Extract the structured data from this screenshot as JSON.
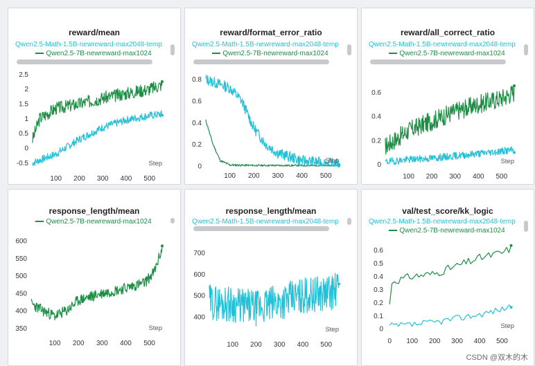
{
  "colors": {
    "green": "#1e8e45",
    "cyan": "#22c1d8",
    "axis": "#333333"
  },
  "legend": {
    "math15b": "Qwen2.5-Math-1.5B-newreward-max2048-temp",
    "qwen7b": "Qwen2.5-7B-newreward-max1024"
  },
  "step_label": "Step",
  "watermark": "CSDN @双木的木",
  "chart_data": [
    {
      "id": "reward-mean",
      "type": "line",
      "title": "reward/mean",
      "xlim": [
        0,
        560
      ],
      "ylim": [
        -0.7,
        2.6
      ],
      "xticks": [
        100,
        200,
        300,
        400,
        500
      ],
      "yticks": [
        -0.5,
        0,
        0.5,
        1,
        1.5,
        2,
        2.5
      ],
      "yticklabels": [
        "-0.5",
        "0",
        "0.5",
        "1",
        "1.5",
        "2",
        "2.5"
      ],
      "series": [
        {
          "name": "Qwen2.5-7B-newreward-max1024",
          "color": "green",
          "noise": 0.22,
          "seed": 3,
          "trend": [
            [
              0,
              0.3
            ],
            [
              30,
              1.0
            ],
            [
              100,
              1.35
            ],
            [
              200,
              1.5
            ],
            [
              300,
              1.7
            ],
            [
              400,
              1.85
            ],
            [
              500,
              2.0
            ],
            [
              555,
              2.15
            ]
          ]
        },
        {
          "name": "Qwen2.5-Math-1.5B-newreward-max2048-temp",
          "color": "cyan",
          "noise": 0.13,
          "seed": 7,
          "trend": [
            [
              0,
              -0.5
            ],
            [
              100,
              -0.2
            ],
            [
              200,
              0.3
            ],
            [
              300,
              0.7
            ],
            [
              400,
              0.95
            ],
            [
              500,
              1.1
            ],
            [
              555,
              1.15
            ]
          ]
        }
      ]
    },
    {
      "id": "format-error",
      "type": "line",
      "title": "reward/format_error_ratio",
      "xlim": [
        0,
        560
      ],
      "ylim": [
        0,
        0.88
      ],
      "xticks": [
        100,
        200,
        300,
        400,
        500
      ],
      "yticks": [
        0,
        0.2,
        0.4,
        0.6,
        0.8
      ],
      "yticklabels": [
        "0",
        "0.2",
        "0.4",
        "0.6",
        "0.8"
      ],
      "series": [
        {
          "name": "Qwen2.5-7B-newreward-max1024",
          "color": "green",
          "noise": 0.01,
          "seed": 11,
          "trend": [
            [
              0,
              0.42
            ],
            [
              30,
              0.2
            ],
            [
              60,
              0.05
            ],
            [
              100,
              0.01
            ],
            [
              200,
              0.005
            ],
            [
              555,
              0.003
            ]
          ]
        },
        {
          "name": "Qwen2.5-Math-1.5B-newreward-max2048-temp",
          "color": "cyan",
          "noise": 0.05,
          "seed": 13,
          "trend": [
            [
              0,
              0.8
            ],
            [
              100,
              0.72
            ],
            [
              150,
              0.6
            ],
            [
              200,
              0.35
            ],
            [
              250,
              0.2
            ],
            [
              300,
              0.12
            ],
            [
              400,
              0.05
            ],
            [
              500,
              0.03
            ],
            [
              555,
              0.02
            ]
          ]
        }
      ]
    },
    {
      "id": "all-correct",
      "type": "line",
      "title": "reward/all_correct_ratio",
      "xlim": [
        0,
        560
      ],
      "ylim": [
        -0.02,
        0.78
      ],
      "xticks": [
        100,
        200,
        300,
        400,
        500
      ],
      "yticks": [
        0,
        0.2,
        0.4,
        0.6
      ],
      "yticklabels": [
        "0",
        "0.2",
        "0.4",
        "0.6"
      ],
      "series": [
        {
          "name": "Qwen2.5-7B-newreward-max1024",
          "color": "green",
          "noise": 0.08,
          "seed": 17,
          "trend": [
            [
              0,
              0.15
            ],
            [
              100,
              0.28
            ],
            [
              200,
              0.36
            ],
            [
              300,
              0.44
            ],
            [
              400,
              0.5
            ],
            [
              500,
              0.55
            ],
            [
              555,
              0.6
            ]
          ]
        },
        {
          "name": "Qwen2.5-Math-1.5B-newreward-max2048-temp",
          "color": "cyan",
          "noise": 0.03,
          "seed": 19,
          "trend": [
            [
              0,
              0.02
            ],
            [
              100,
              0.04
            ],
            [
              200,
              0.05
            ],
            [
              300,
              0.07
            ],
            [
              400,
              0.09
            ],
            [
              500,
              0.11
            ],
            [
              555,
              0.12
            ]
          ]
        }
      ]
    },
    {
      "id": "resp-len-7b",
      "type": "line",
      "title": "response_length/mean",
      "xlim": [
        0,
        560
      ],
      "ylim": [
        335,
        632
      ],
      "xticks": [
        100,
        200,
        300,
        400,
        500
      ],
      "yticks": [
        350,
        400,
        450,
        500,
        550,
        600
      ],
      "yticklabels": [
        "350",
        "400",
        "450",
        "500",
        "550",
        "600"
      ],
      "series": [
        {
          "name": "Qwen2.5-7B-newreward-max1024",
          "color": "green",
          "noise": 16,
          "seed": 23,
          "trend": [
            [
              0,
              420
            ],
            [
              50,
              400
            ],
            [
              100,
              385
            ],
            [
              150,
              400
            ],
            [
              200,
              430
            ],
            [
              300,
              450
            ],
            [
              400,
              465
            ],
            [
              480,
              480
            ],
            [
              520,
              510
            ],
            [
              555,
              580
            ]
          ]
        }
      ]
    },
    {
      "id": "resp-len-math",
      "type": "line",
      "title": "response_length/mean",
      "xlim": [
        0,
        560
      ],
      "ylim": [
        315,
        770
      ],
      "xticks": [
        100,
        200,
        300,
        400,
        500
      ],
      "yticks": [
        400,
        500,
        600,
        700
      ],
      "yticklabels": [
        "400",
        "500",
        "600",
        "700"
      ],
      "series": [
        {
          "name": "Qwen2.5-Math-1.5B-newreward-max2048-temp",
          "color": "cyan",
          "noise": 85,
          "seed": 29,
          "trend": [
            [
              0,
              470
            ],
            [
              100,
              460
            ],
            [
              200,
              440
            ],
            [
              300,
              470
            ],
            [
              400,
              500
            ],
            [
              500,
              510
            ],
            [
              555,
              530
            ]
          ]
        }
      ]
    },
    {
      "id": "kk-logic",
      "type": "line",
      "title": "val/test_score/kk_logic",
      "xlim": [
        -10,
        560
      ],
      "ylim": [
        -0.02,
        0.65
      ],
      "xticks": [
        0,
        100,
        200,
        300,
        400,
        500
      ],
      "yticks": [
        0,
        0.1,
        0.2,
        0.3,
        0.4,
        0.5,
        0.6
      ],
      "yticklabels": [
        "0",
        "0.1",
        "0.2",
        "0.3",
        "0.4",
        "0.5",
        "0.6"
      ],
      "series": [
        {
          "name": "Qwen2.5-7B-newreward-max1024",
          "color": "green",
          "step": 10,
          "noise": 0.03,
          "seed": 31,
          "trend": [
            [
              0,
              0.18
            ],
            [
              10,
              0.36
            ],
            [
              100,
              0.4
            ],
            [
              200,
              0.42
            ],
            [
              300,
              0.48
            ],
            [
              400,
              0.54
            ],
            [
              500,
              0.58
            ],
            [
              545,
              0.62
            ]
          ]
        },
        {
          "name": "Qwen2.5-Math-1.5B-newreward-max2048-temp",
          "color": "cyan",
          "step": 10,
          "noise": 0.025,
          "seed": 37,
          "trend": [
            [
              0,
              0.02
            ],
            [
              100,
              0.03
            ],
            [
              200,
              0.05
            ],
            [
              300,
              0.08
            ],
            [
              400,
              0.11
            ],
            [
              500,
              0.15
            ],
            [
              545,
              0.18
            ]
          ]
        }
      ]
    }
  ]
}
